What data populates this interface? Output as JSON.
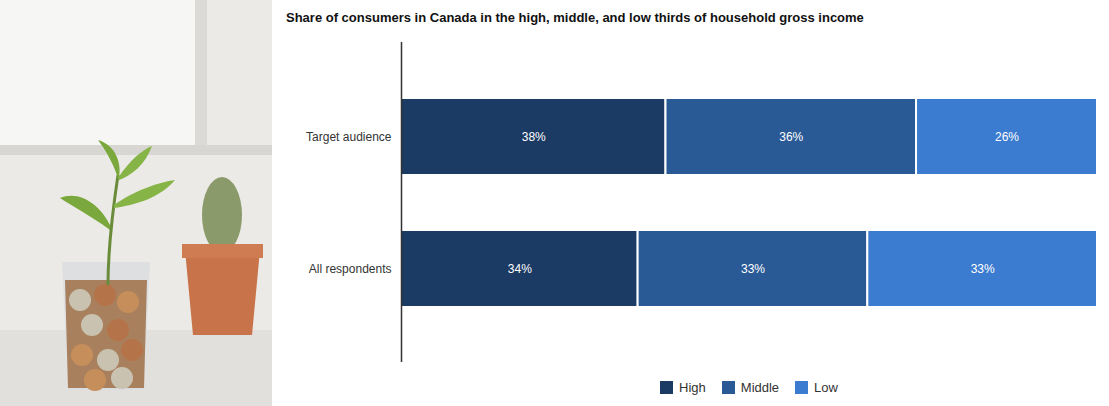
{
  "chart_data": {
    "type": "bar",
    "orientation": "horizontal",
    "stacked": true,
    "data_labels": true,
    "title": "Share of consumers in Canada in the high, middle, and low thirds of household gross income",
    "categories": [
      "Target audience",
      "All respondents"
    ],
    "series": [
      {
        "name": "High",
        "color": "#1b3a64",
        "values": [
          38,
          34
        ],
        "value_labels": [
          "38%",
          "34%"
        ]
      },
      {
        "name": "Middle",
        "color": "#2a5a96",
        "values": [
          36,
          33
        ],
        "value_labels": [
          "36%",
          "33%"
        ]
      },
      {
        "name": "Low",
        "color": "#3b7bd0",
        "values": [
          26,
          33
        ],
        "value_labels": [
          "26%",
          "33%"
        ]
      }
    ],
    "xlim": [
      0,
      100
    ],
    "tick_labels": "y",
    "legend": "bottom"
  }
}
